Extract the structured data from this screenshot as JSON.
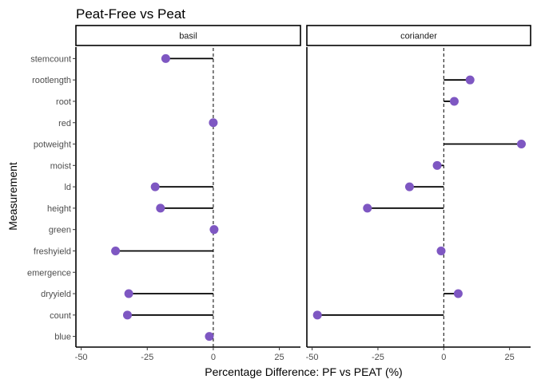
{
  "chart_data": {
    "type": "lollipop",
    "title": "Peat-Free vs Peat",
    "xlabel": "Percentage Difference: PF vs PEAT (%)",
    "ylabel": "Measurement",
    "xlim": [
      -52,
      33
    ],
    "x_ticks": [
      -50,
      -25,
      0,
      25
    ],
    "x_tick_labels": [
      "-50",
      "-25",
      "0",
      "25"
    ],
    "reference_line": 0,
    "grid": false,
    "point_color": "#7e57c2",
    "categories": [
      "stemcount",
      "rootlength",
      "root",
      "red",
      "potweight",
      "moist",
      "ld",
      "height",
      "green",
      "freshyield",
      "emergence",
      "dryyield",
      "count",
      "blue"
    ],
    "panels": [
      {
        "name": "basil",
        "values": [
          -18,
          null,
          null,
          0,
          null,
          null,
          -22,
          -20,
          0.3,
          -37,
          null,
          -32,
          -32.5,
          -1.5
        ]
      },
      {
        "name": "coriander",
        "values": [
          null,
          10,
          4,
          null,
          29.5,
          -2.5,
          -13,
          -29,
          null,
          -1,
          null,
          5.5,
          -48,
          null
        ]
      }
    ]
  }
}
